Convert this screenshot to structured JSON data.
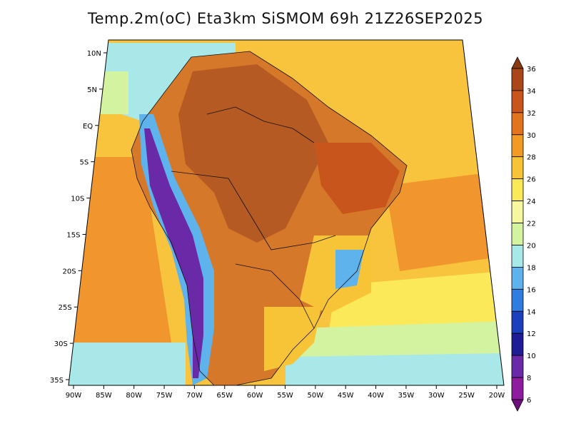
{
  "title": "Temp.2m(oC) Eta3km SiSMOM 69h 21Z26SEP2025",
  "chart_data": {
    "type": "map",
    "variable": "Temp.2m(oC)",
    "model": "Eta3km SiSMOM",
    "lon_labels": [
      "90W",
      "85W",
      "80W",
      "75W",
      "70W",
      "65W",
      "60W",
      "55W",
      "50W",
      "45W",
      "40W",
      "35W",
      "30W",
      "25W",
      "20W"
    ],
    "lat_labels": [
      "10N",
      "5N",
      "EQ",
      "5S",
      "10S",
      "15S",
      "20S",
      "25S",
      "30S",
      "35S"
    ],
    "legend": {
      "labels": [
        "36",
        "34",
        "32",
        "30",
        "28",
        "26",
        "24",
        "22",
        "20",
        "18",
        "16",
        "14",
        "12",
        "10",
        "8",
        "6"
      ],
      "colors": [
        "#8a3a12",
        "#a9461a",
        "#c8561c",
        "#e3741f",
        "#f29a26",
        "#f8c437",
        "#fbe95a",
        "#f7f7a0",
        "#d4f3a0",
        "#a8e8e8",
        "#5fb3ec",
        "#2f7de0",
        "#1a3fbf",
        "#1d1d96",
        "#6a2aa8",
        "#8d1c9e",
        "#6e0f7e"
      ]
    },
    "colors": {
      "ocean_warm": "#f2962c",
      "ocean_mid": "#f8c43e",
      "land": "#d6782a",
      "land_hot": "#b45a22",
      "highland_cool": "#5fb3ec",
      "highland_cold": "#6a2aa8"
    }
  }
}
